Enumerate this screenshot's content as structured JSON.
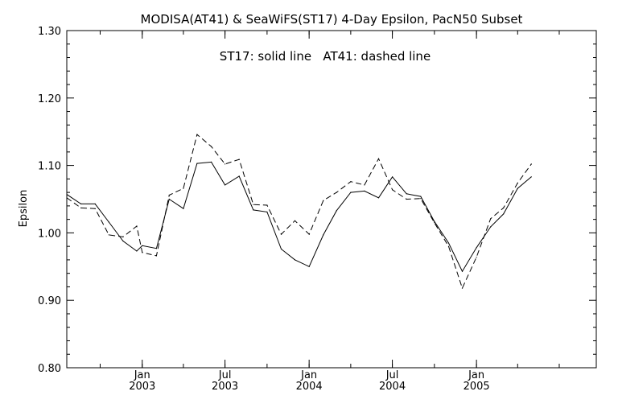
{
  "chart_data": {
    "type": "line",
    "title": "MODISA(AT41) & SeaWiFS(ST17) 4-Day Epsilon, PacN50 Subset",
    "annotation": "ST17: solid line   AT41: dashed line",
    "xlabel": "",
    "ylabel": "Epsilon",
    "xlim": [
      "2002-07-20",
      "2005-09-20"
    ],
    "ylim": [
      0.8,
      1.3
    ],
    "y_ticks": [
      0.8,
      0.9,
      1.0,
      1.1,
      1.2,
      1.3
    ],
    "y_tick_labels": [
      "0.80",
      "0.90",
      "1.00",
      "1.10",
      "1.20",
      "1.30"
    ],
    "x_ticks": [
      {
        "date": "2003-01-01",
        "month": "Jan",
        "year": "2003"
      },
      {
        "date": "2003-07-01",
        "month": "Jul",
        "year": "2003"
      },
      {
        "date": "2004-01-01",
        "month": "Jan",
        "year": "2004"
      },
      {
        "date": "2004-07-01",
        "month": "Jul",
        "year": "2004"
      },
      {
        "date": "2005-01-01",
        "month": "Jan",
        "year": "2005"
      }
    ],
    "grid": false,
    "series": [
      {
        "name": "ST17",
        "style": "solid",
        "color": "#000000",
        "points": [
          [
            "2002-07-20",
            1.057
          ],
          [
            "2002-08-20",
            1.043
          ],
          [
            "2002-09-20",
            1.043
          ],
          [
            "2002-10-20",
            1.016
          ],
          [
            "2002-11-20",
            0.988
          ],
          [
            "2002-12-20",
            0.973
          ],
          [
            "2003-01-01",
            0.981
          ],
          [
            "2003-02-01",
            0.977
          ],
          [
            "2003-03-01",
            1.05
          ],
          [
            "2003-04-01",
            1.036
          ],
          [
            "2003-05-01",
            1.103
          ],
          [
            "2003-06-01",
            1.105
          ],
          [
            "2003-07-01",
            1.071
          ],
          [
            "2003-08-01",
            1.084
          ],
          [
            "2003-09-01",
            1.034
          ],
          [
            "2003-10-01",
            1.031
          ],
          [
            "2003-11-01",
            0.976
          ],
          [
            "2003-12-01",
            0.96
          ],
          [
            "2004-01-01",
            0.95
          ],
          [
            "2004-02-01",
            0.997
          ],
          [
            "2004-03-01",
            1.033
          ],
          [
            "2004-04-01",
            1.06
          ],
          [
            "2004-05-01",
            1.062
          ],
          [
            "2004-06-01",
            1.052
          ],
          [
            "2004-07-01",
            1.083
          ],
          [
            "2004-08-01",
            1.058
          ],
          [
            "2004-09-01",
            1.054
          ],
          [
            "2004-10-01",
            1.017
          ],
          [
            "2004-11-01",
            0.985
          ],
          [
            "2004-12-01",
            0.943
          ],
          [
            "2005-01-01",
            0.978
          ],
          [
            "2005-02-01",
            1.009
          ],
          [
            "2005-03-01",
            1.028
          ],
          [
            "2005-04-01",
            1.066
          ],
          [
            "2005-05-01",
            1.083
          ]
        ]
      },
      {
        "name": "AT41",
        "style": "dashed",
        "color": "#000000",
        "points": [
          [
            "2002-07-20",
            1.052
          ],
          [
            "2002-08-20",
            1.037
          ],
          [
            "2002-09-20",
            1.036
          ],
          [
            "2002-10-20",
            0.997
          ],
          [
            "2002-11-20",
            0.994
          ],
          [
            "2002-12-20",
            1.01
          ],
          [
            "2003-01-01",
            0.971
          ],
          [
            "2003-02-01",
            0.966
          ],
          [
            "2003-03-01",
            1.056
          ],
          [
            "2003-04-01",
            1.066
          ],
          [
            "2003-05-01",
            1.146
          ],
          [
            "2003-06-01",
            1.128
          ],
          [
            "2003-07-01",
            1.102
          ],
          [
            "2003-08-01",
            1.109
          ],
          [
            "2003-09-01",
            1.042
          ],
          [
            "2003-10-01",
            1.041
          ],
          [
            "2003-11-01",
            0.998
          ],
          [
            "2003-12-01",
            1.018
          ],
          [
            "2004-01-01",
            0.998
          ],
          [
            "2004-02-01",
            1.048
          ],
          [
            "2004-03-01",
            1.06
          ],
          [
            "2004-04-01",
            1.076
          ],
          [
            "2004-05-01",
            1.071
          ],
          [
            "2004-06-01",
            1.11
          ],
          [
            "2004-07-01",
            1.064
          ],
          [
            "2004-08-01",
            1.05
          ],
          [
            "2004-09-01",
            1.051
          ],
          [
            "2004-10-01",
            1.015
          ],
          [
            "2004-11-01",
            0.98
          ],
          [
            "2004-12-01",
            0.918
          ],
          [
            "2005-01-01",
            0.964
          ],
          [
            "2005-02-01",
            1.021
          ],
          [
            "2005-03-01",
            1.037
          ],
          [
            "2005-04-01",
            1.074
          ],
          [
            "2005-05-01",
            1.102
          ]
        ]
      }
    ]
  }
}
